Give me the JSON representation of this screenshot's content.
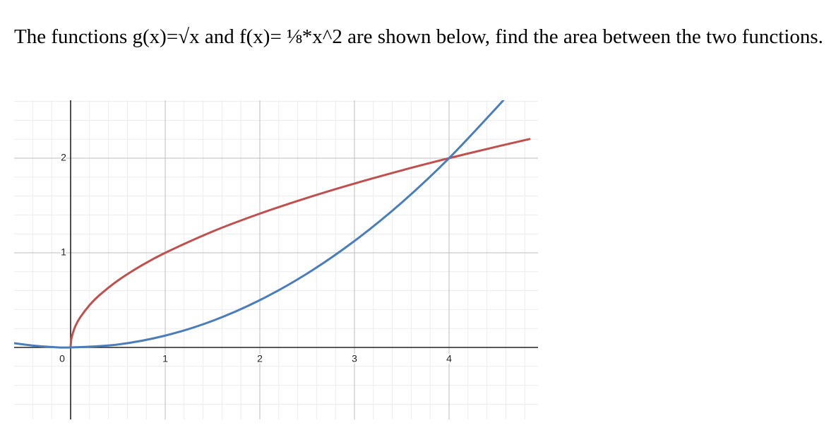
{
  "question": {
    "text": "The functions g(x)=√x and f(x)= ⅛*x^2 are shown below, find the area between the two functions."
  },
  "chart_data": {
    "type": "line",
    "title": "",
    "xlabel": "",
    "ylabel": "",
    "xlim": [
      -0.6,
      4.85
    ],
    "ylim": [
      -0.75,
      2.6
    ],
    "grid": true,
    "minor_grid_per_unit": 5,
    "x_ticks": [
      {
        "value": 0,
        "label": "0"
      },
      {
        "value": 1,
        "label": "1"
      },
      {
        "value": 2,
        "label": "2"
      },
      {
        "value": 3,
        "label": "3"
      },
      {
        "value": 4,
        "label": "4"
      }
    ],
    "y_ticks": [
      {
        "value": 1,
        "label": "1"
      },
      {
        "value": 2,
        "label": "2"
      }
    ],
    "series": [
      {
        "color": "#c0504d",
        "x": [
          0,
          0.01,
          0.05,
          0.1,
          0.2,
          0.3,
          0.5,
          0.75,
          1,
          1.5,
          2,
          2.5,
          3,
          3.5,
          4,
          4.5,
          4.85
        ],
        "y": [
          0,
          0.1,
          0.224,
          0.316,
          0.447,
          0.548,
          0.707,
          0.866,
          1,
          1.225,
          1.414,
          1.581,
          1.732,
          1.871,
          2,
          2.121,
          2.202
        ]
      },
      {
        "color": "#4a7ebb",
        "x": [
          -0.6,
          -0.4,
          -0.2,
          0,
          0.5,
          1,
          1.5,
          2,
          2.5,
          3,
          3.5,
          4,
          4.5,
          4.6
        ],
        "y": [
          0.045,
          0.02,
          0.005,
          0,
          0.031,
          0.125,
          0.281,
          0.5,
          0.781,
          1.125,
          1.531,
          2,
          2.531,
          2.645
        ]
      }
    ]
  }
}
